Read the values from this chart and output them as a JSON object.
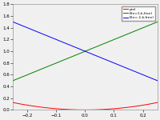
{
  "title": "",
  "xlabel": "",
  "ylabel": "",
  "xlim": [
    -0.25,
    0.25
  ],
  "ylim": [
    0,
    1.8
  ],
  "xticks": [
    -0.2,
    -0.1,
    0,
    0.1,
    0.2
  ],
  "yticks": [
    0,
    0.2,
    0.4,
    0.6,
    0.8,
    1.0,
    1.2,
    1.4,
    1.6,
    1.8
  ],
  "G": 0.5,
  "scale": 2.0,
  "n_values": [
    0,
    1,
    -1
  ],
  "colors": [
    "red",
    "green",
    "blue"
  ],
  "labels": [
    "prel",
    "E(n=1,k,free)",
    "E(n=-1,k,free)"
  ],
  "background": "#f0f0f0",
  "figsize": [
    2.0,
    1.5
  ],
  "dpi": 100
}
